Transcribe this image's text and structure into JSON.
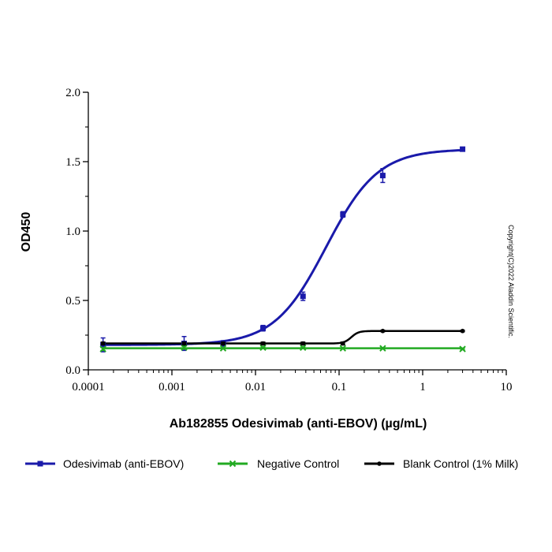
{
  "chart_data": {
    "type": "line",
    "title": "",
    "xlabel": "Ab182855 Odesivimab (anti-EBOV) (µg/mL)",
    "ylabel": "OD450",
    "x_scale": "log",
    "xlim": [
      0.0001,
      10
    ],
    "ylim": [
      0,
      2.0
    ],
    "x_tick_labels": [
      "0.0001",
      "0.001",
      "0.01",
      "0.1",
      "1",
      "10"
    ],
    "x_tick_values": [
      0.0001,
      0.001,
      0.01,
      0.1,
      1,
      10
    ],
    "y_tick_labels": [
      "0.0",
      "0.5",
      "1.0",
      "1.5",
      "2.0"
    ],
    "y_tick_values": [
      0,
      0.5,
      1.0,
      1.5,
      2.0
    ],
    "grid": false,
    "legend_position": "bottom",
    "series": [
      {
        "name": "Odesivimab (anti-EBOV)",
        "color": "#1a1aaa",
        "marker": "square",
        "x": [
          0.00015,
          0.0014,
          0.0041,
          0.0123,
          0.037,
          0.111,
          0.333,
          3.0
        ],
        "y": [
          0.18,
          0.19,
          0.19,
          0.3,
          0.53,
          1.12,
          1.4,
          1.59
        ],
        "err": [
          0.05,
          0.05,
          0.02,
          0.02,
          0.03,
          0.02,
          0.05,
          0.01
        ],
        "curve": [
          0.18,
          1.59,
          0.07,
          1.4
        ]
      },
      {
        "name": "Negative Control",
        "color": "#22aa22",
        "marker": "x",
        "x": [
          0.00015,
          0.0014,
          0.0041,
          0.0123,
          0.037,
          0.111,
          0.333,
          3.0
        ],
        "y": [
          0.15,
          0.16,
          0.155,
          0.16,
          0.16,
          0.155,
          0.155,
          0.15
        ],
        "err": [
          0.01,
          0.01,
          0.005,
          0.005,
          0.005,
          0.005,
          0.005,
          0.005
        ]
      },
      {
        "name": "Blank Control (1% Milk)",
        "color": "#000000",
        "marker": "dot",
        "x": [
          0.00015,
          0.0014,
          0.0041,
          0.0123,
          0.037,
          0.111,
          0.333,
          3.0
        ],
        "y": [
          0.19,
          0.19,
          0.19,
          0.19,
          0.19,
          0.19,
          0.28,
          0.28
        ],
        "err": [
          0.01,
          0.01,
          0.01,
          0.01,
          0.01,
          0.01,
          0.005,
          0.005
        ],
        "curve": [
          0.19,
          0.28,
          0.14,
          10
        ]
      }
    ]
  },
  "copyright": "Copyright(C)2022 Aladdin Scientific."
}
